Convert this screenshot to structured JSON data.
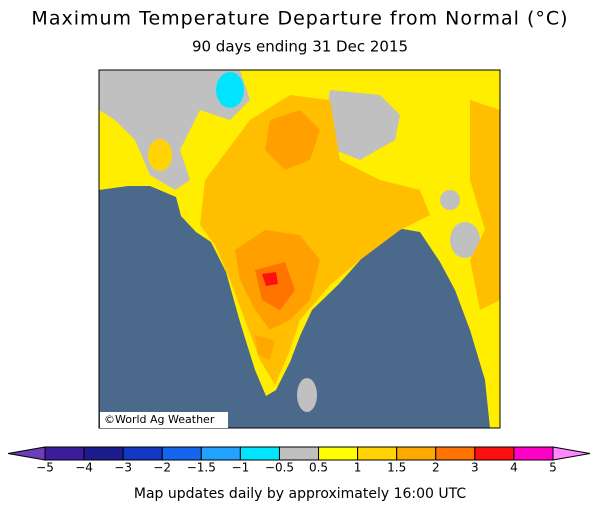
{
  "header": {
    "title": "Maximum Temperature Departure from Normal (°C)",
    "subtitle": "90 days ending 31 Dec 2015"
  },
  "map": {
    "credit": "©World Ag Weather"
  },
  "legend": {
    "labels": [
      "−5",
      "−4",
      "−3",
      "−2",
      "−1.5",
      "−1",
      "−0.5",
      "0.5",
      "1",
      "1.5",
      "2",
      "3",
      "4",
      "5"
    ],
    "colors": [
      "#6b3fb5",
      "#3d1c9c",
      "#1c1c8e",
      "#1238c4",
      "#1466f0",
      "#22a2ff",
      "#00e4ff",
      "#c0c0c0",
      "#ffff00",
      "#ffd400",
      "#ffa800",
      "#ff7400",
      "#ff1010",
      "#ff00c8",
      "#ff88ff"
    ]
  },
  "footer": "Map updates daily by approximately 16:00 UTC"
}
